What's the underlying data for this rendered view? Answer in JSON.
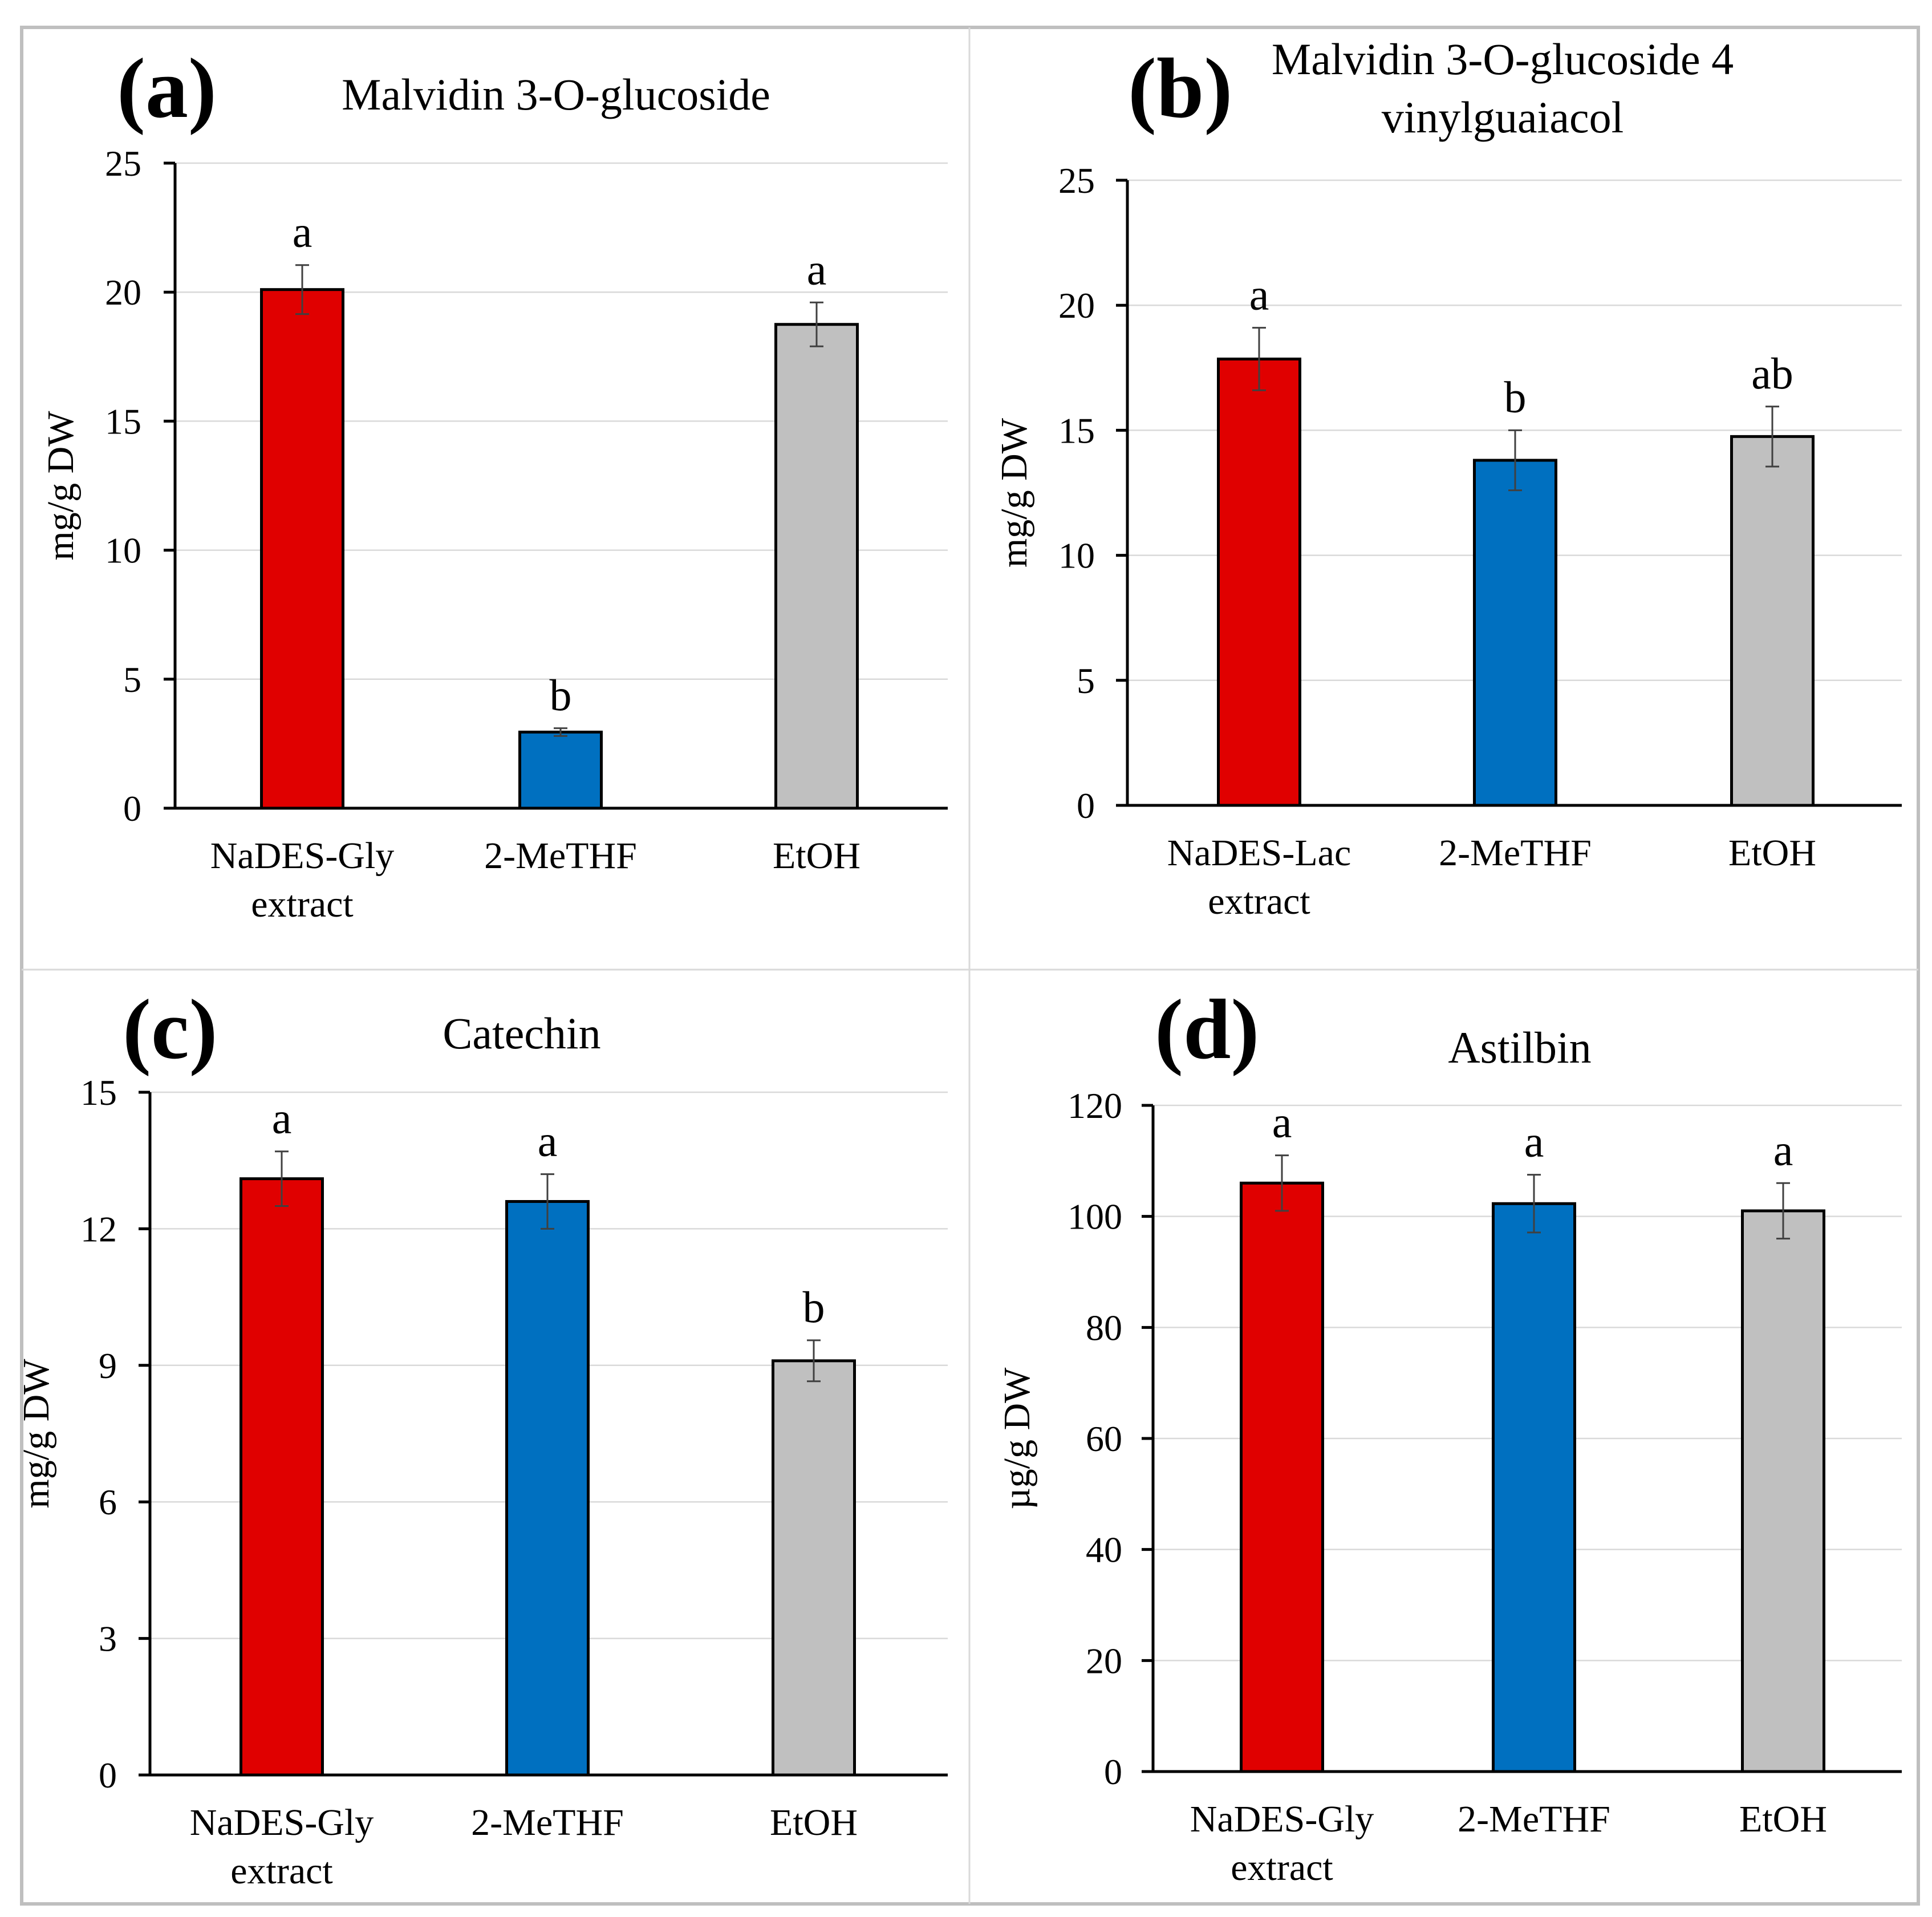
{
  "colors": {
    "nades": "#e00000",
    "methf": "#0070c0",
    "etoh": "#c0c0c0"
  },
  "chart_data": [
    {
      "type": "bar",
      "panel_label": "(a)",
      "title": [
        "Malvidin 3-O-glucoside"
      ],
      "ylabel": "mg/g DW",
      "xlabel": "",
      "ylim": [
        0,
        25
      ],
      "yticks": [
        0,
        5,
        10,
        15,
        20,
        25
      ],
      "categories": [
        [
          "NaDES-Gly",
          "extract"
        ],
        [
          "2-MeTHF"
        ],
        [
          "EtOH"
        ]
      ],
      "values": [
        20.1,
        2.95,
        18.75
      ],
      "errors": [
        0.95,
        0.15,
        0.85
      ],
      "significance": [
        "a",
        "b",
        "a"
      ],
      "grid": true
    },
    {
      "type": "bar",
      "panel_label": "(b)",
      "title": [
        "Malvidin 3-O-glucoside 4",
        "vinylguaiacol"
      ],
      "ylabel": "mg/g DW",
      "xlabel": "",
      "ylim": [
        0,
        25
      ],
      "yticks": [
        0,
        5,
        10,
        15,
        20,
        25
      ],
      "categories": [
        [
          "NaDES-Lac",
          "extract"
        ],
        [
          "2-MeTHF"
        ],
        [
          "EtOH"
        ]
      ],
      "values": [
        17.85,
        13.8,
        14.75
      ],
      "errors": [
        1.25,
        1.2,
        1.2
      ],
      "significance": [
        "a",
        "b",
        "ab"
      ],
      "grid": true
    },
    {
      "type": "bar",
      "panel_label": "(c)",
      "title": [
        "Catechin"
      ],
      "ylabel": "mg/g DW",
      "xlabel": "",
      "ylim": [
        0,
        15
      ],
      "yticks": [
        0,
        3,
        6,
        9,
        12,
        15
      ],
      "categories": [
        [
          "NaDES-Gly",
          "extract"
        ],
        [
          "2-MeTHF"
        ],
        [
          "EtOH"
        ]
      ],
      "values": [
        13.1,
        12.6,
        9.1
      ],
      "errors": [
        0.6,
        0.6,
        0.45
      ],
      "significance": [
        "a",
        "a",
        "b"
      ],
      "grid": true
    },
    {
      "type": "bar",
      "panel_label": "(d)",
      "title": [
        "Astilbin"
      ],
      "ylabel": "µg/g DW",
      "xlabel": "",
      "ylim": [
        0,
        120
      ],
      "yticks": [
        0,
        20,
        40,
        60,
        80,
        100,
        120
      ],
      "categories": [
        [
          "NaDES-Gly",
          "extract"
        ],
        [
          "2-MeTHF"
        ],
        [
          "EtOH"
        ]
      ],
      "values": [
        106,
        102.3,
        101
      ],
      "errors": [
        5,
        5.2,
        5
      ],
      "significance": [
        "a",
        "a",
        "a"
      ],
      "grid": true
    }
  ]
}
